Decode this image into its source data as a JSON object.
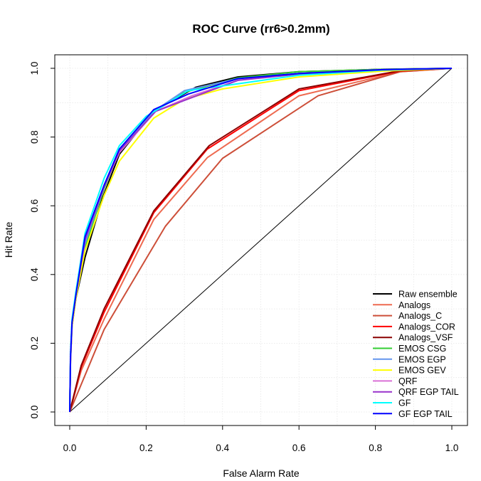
{
  "chart_data": {
    "type": "line",
    "title": "ROC Curve (rr6>0.2mm)",
    "xlabel": "False Alarm Rate",
    "ylabel": "Hit Rate",
    "xlim": [
      0,
      1
    ],
    "ylim": [
      0,
      1
    ],
    "xticks": [
      "0.0",
      "0.2",
      "0.4",
      "0.6",
      "0.8",
      "1.0"
    ],
    "yticks": [
      "0.0",
      "0.2",
      "0.4",
      "0.6",
      "0.8",
      "1.0"
    ],
    "grid": true,
    "legend_position": "bottom-right",
    "reference_line": "diagonal",
    "series": [
      {
        "name": "Raw ensemble",
        "color": "#000000",
        "x": [
          0,
          0.002,
          0.006,
          0.016,
          0.04,
          0.085,
          0.13,
          0.22,
          0.33,
          0.44,
          0.6,
          0.82,
          1
        ],
        "y": [
          0,
          0.15,
          0.25,
          0.33,
          0.45,
          0.62,
          0.75,
          0.875,
          0.945,
          0.975,
          0.99,
          0.997,
          1
        ]
      },
      {
        "name": "Analogs",
        "color": "#ee6a50",
        "x": [
          0,
          0.03,
          0.09,
          0.22,
          0.36,
          0.6,
          0.865,
          1
        ],
        "y": [
          0,
          0.12,
          0.27,
          0.56,
          0.74,
          0.92,
          0.99,
          1
        ]
      },
      {
        "name": "Analogs_C",
        "color": "#cd4f39",
        "x": [
          0,
          0.09,
          0.25,
          0.4,
          0.65,
          0.865,
          1
        ],
        "y": [
          0,
          0.24,
          0.54,
          0.738,
          0.92,
          0.99,
          1
        ]
      },
      {
        "name": "Analogs_COR",
        "color": "#ff0000",
        "x": [
          0,
          0.03,
          0.09,
          0.22,
          0.36,
          0.6,
          0.865,
          1
        ],
        "y": [
          0,
          0.13,
          0.29,
          0.58,
          0.765,
          0.935,
          0.992,
          1
        ]
      },
      {
        "name": "Analogs_VSF",
        "color": "#8b0000",
        "x": [
          0,
          0.03,
          0.09,
          0.22,
          0.365,
          0.6,
          0.865,
          1
        ],
        "y": [
          0,
          0.135,
          0.3,
          0.585,
          0.775,
          0.94,
          0.993,
          1
        ]
      },
      {
        "name": "EMOS CSG",
        "color": "#32cd32",
        "x": [
          0,
          0.002,
          0.006,
          0.016,
          0.04,
          0.09,
          0.13,
          0.22,
          0.3,
          0.44,
          0.6,
          0.82,
          1
        ],
        "y": [
          0,
          0.16,
          0.26,
          0.34,
          0.48,
          0.65,
          0.76,
          0.875,
          0.93,
          0.972,
          0.99,
          0.997,
          1
        ]
      },
      {
        "name": "EMOS EGP",
        "color": "#6495ed",
        "x": [
          0,
          0.002,
          0.006,
          0.016,
          0.04,
          0.09,
          0.13,
          0.22,
          0.3,
          0.44,
          0.6,
          0.82,
          1
        ],
        "y": [
          0,
          0.16,
          0.26,
          0.34,
          0.49,
          0.655,
          0.765,
          0.875,
          0.935,
          0.97,
          0.985,
          0.996,
          1
        ]
      },
      {
        "name": "EMOS GEV",
        "color": "#ffff00",
        "x": [
          0,
          0.002,
          0.006,
          0.016,
          0.04,
          0.09,
          0.13,
          0.22,
          0.3,
          0.4,
          0.6,
          0.82,
          1
        ],
        "y": [
          0,
          0.15,
          0.25,
          0.33,
          0.47,
          0.63,
          0.73,
          0.855,
          0.91,
          0.94,
          0.975,
          0.992,
          1
        ]
      },
      {
        "name": "QRF",
        "color": "#da70d6",
        "x": [
          0,
          0.002,
          0.006,
          0.016,
          0.04,
          0.09,
          0.13,
          0.225,
          0.32,
          0.44,
          0.6,
          0.82,
          1
        ],
        "y": [
          0,
          0.15,
          0.26,
          0.34,
          0.5,
          0.655,
          0.755,
          0.875,
          0.92,
          0.965,
          0.985,
          0.996,
          1
        ]
      },
      {
        "name": "QRF EGP TAIL",
        "color": "#9932cc",
        "x": [
          0,
          0.002,
          0.006,
          0.016,
          0.04,
          0.09,
          0.13,
          0.225,
          0.32,
          0.44,
          0.6,
          0.82,
          1
        ],
        "y": [
          0,
          0.155,
          0.26,
          0.34,
          0.5,
          0.655,
          0.76,
          0.875,
          0.915,
          0.965,
          0.983,
          0.995,
          1
        ]
      },
      {
        "name": "GF",
        "color": "#00ffff",
        "x": [
          0,
          0.002,
          0.006,
          0.016,
          0.04,
          0.09,
          0.13,
          0.2,
          0.31,
          0.44,
          0.6,
          0.82,
          1
        ],
        "y": [
          0,
          0.17,
          0.27,
          0.35,
          0.52,
          0.68,
          0.775,
          0.86,
          0.935,
          0.955,
          0.98,
          0.995,
          1
        ]
      },
      {
        "name": "GF EGP TAIL",
        "color": "#0000ff",
        "x": [
          0,
          0.002,
          0.006,
          0.016,
          0.04,
          0.09,
          0.13,
          0.22,
          0.31,
          0.44,
          0.6,
          0.82,
          1
        ],
        "y": [
          0,
          0.16,
          0.26,
          0.34,
          0.51,
          0.66,
          0.765,
          0.88,
          0.925,
          0.97,
          0.985,
          0.996,
          1
        ]
      }
    ]
  }
}
